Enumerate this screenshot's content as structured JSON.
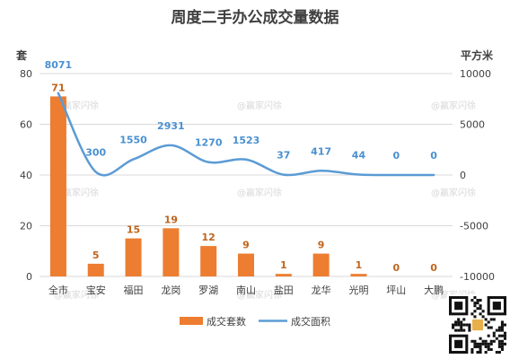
{
  "chart_data": {
    "type": "bar",
    "title": "周度二手办公成交量数据",
    "categories": [
      "全市",
      "宝安",
      "福田",
      "龙岗",
      "罗湖",
      "南山",
      "盐田",
      "龙华",
      "光明",
      "坪山",
      "大鹏"
    ],
    "y_left": {
      "label": "套",
      "range": [
        0,
        80
      ],
      "ticks": [
        0,
        20,
        40,
        60,
        80
      ]
    },
    "y_right": {
      "label": "平方米",
      "range": [
        -10000,
        10000
      ],
      "ticks": [
        -10000,
        -5000,
        0,
        5000,
        10000
      ]
    },
    "series": [
      {
        "name": "成交套数",
        "type": "bar",
        "axis": "left",
        "color": "#ed7d31",
        "values": [
          71,
          5,
          15,
          19,
          12,
          9,
          1,
          9,
          1,
          0,
          0
        ]
      },
      {
        "name": "成交面积",
        "type": "line",
        "axis": "right",
        "color": "#5b9bd5",
        "values": [
          8071,
          300,
          1550,
          2931,
          1270,
          1523,
          37,
          417,
          44,
          0,
          0
        ]
      }
    ],
    "legend": "bottom",
    "grid": true
  },
  "watermark": "@赢家闪徐"
}
